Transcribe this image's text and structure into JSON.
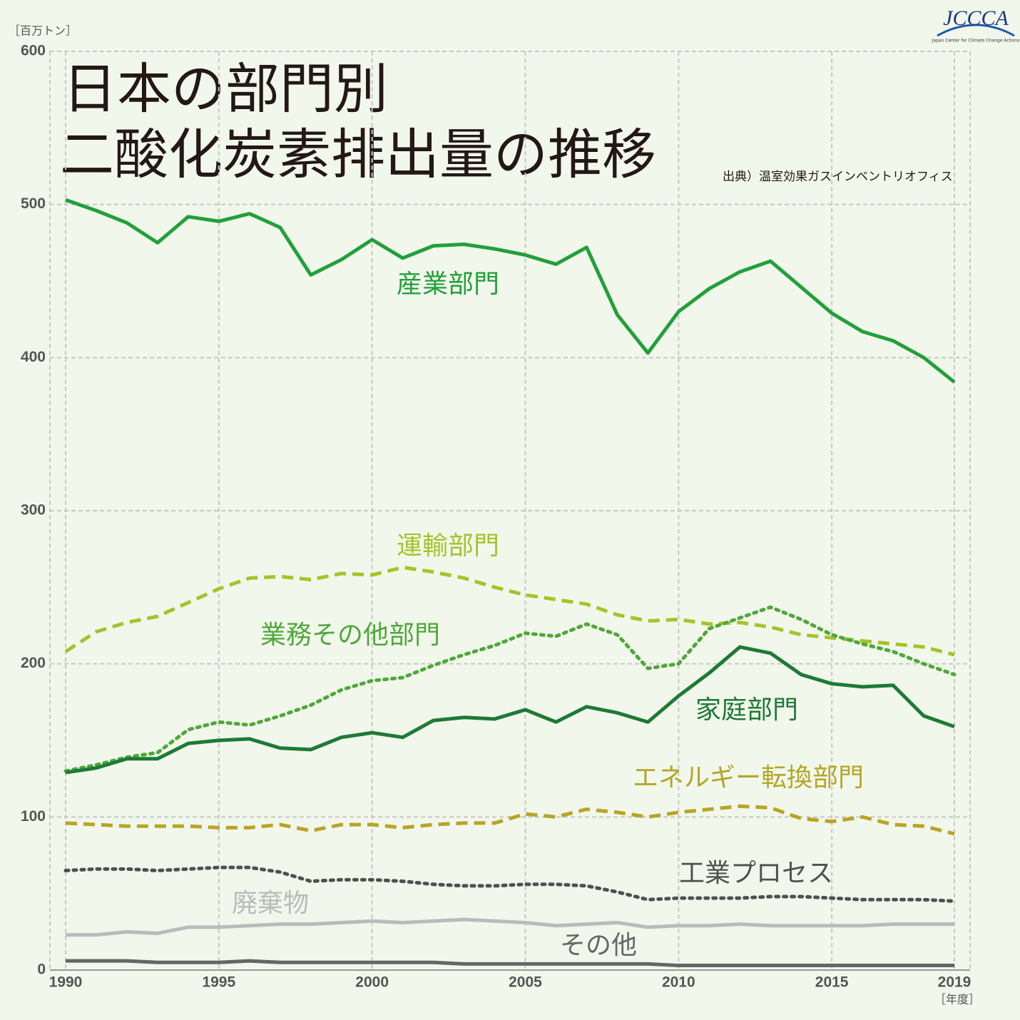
{
  "chart_data": {
    "type": "line",
    "title": [
      "日本の部門別",
      "二酸化炭素排出量の推移"
    ],
    "source": "出典）温室効果ガスインベントリオフィス",
    "y_label": "［百万トン］",
    "x_label": "［年度］",
    "logo": {
      "name": "JCCCA",
      "caption": "Japan Center for Climate Change Actions"
    },
    "x": [
      1990,
      1991,
      1992,
      1993,
      1994,
      1995,
      1996,
      1997,
      1998,
      1999,
      2000,
      2001,
      2002,
      2003,
      2004,
      2005,
      2006,
      2007,
      2008,
      2009,
      2010,
      2011,
      2012,
      2013,
      2014,
      2015,
      2016,
      2017,
      2018,
      2019
    ],
    "xlim": [
      1990,
      2019
    ],
    "xticks": [
      1990,
      1995,
      2000,
      2005,
      2010,
      2015,
      2019
    ],
    "ylim": [
      0,
      600
    ],
    "yticks": [
      0,
      100,
      200,
      300,
      400,
      500,
      600
    ],
    "grid": true,
    "series": [
      {
        "name": "産業部門",
        "color": "#22a03a",
        "dash": "solid",
        "values": [
          503,
          496,
          488,
          475,
          492,
          489,
          494,
          485,
          454,
          464,
          477,
          465,
          473,
          474,
          471,
          467,
          461,
          472,
          428,
          403,
          430,
          445,
          456,
          463,
          446,
          429,
          417,
          411,
          400,
          384
        ]
      },
      {
        "name": "運輸部門",
        "color": "#a8c22a",
        "dash": "dashed",
        "values": [
          208,
          221,
          227,
          231,
          240,
          249,
          256,
          257,
          255,
          259,
          258,
          263,
          260,
          256,
          250,
          245,
          242,
          239,
          232,
          228,
          229,
          226,
          227,
          224,
          219,
          217,
          215,
          213,
          211,
          206
        ]
      },
      {
        "name": "業務その他部門",
        "color": "#4fa83a",
        "dash": "dotted",
        "values": [
          130,
          134,
          139,
          142,
          157,
          162,
          160,
          166,
          173,
          183,
          189,
          191,
          199,
          206,
          212,
          220,
          218,
          226,
          219,
          197,
          200,
          223,
          230,
          237,
          229,
          219,
          213,
          208,
          200,
          193
        ]
      },
      {
        "name": "家庭部門",
        "color": "#1e7a35",
        "dash": "solid",
        "values": [
          129,
          132,
          138,
          138,
          148,
          150,
          151,
          145,
          144,
          152,
          155,
          152,
          163,
          165,
          164,
          170,
          162,
          172,
          168,
          162,
          179,
          194,
          211,
          207,
          193,
          187,
          185,
          186,
          166,
          159
        ]
      },
      {
        "name": "エネルギー転換部門",
        "color": "#b5a626",
        "dash": "dashed",
        "values": [
          96,
          95,
          94,
          94,
          94,
          93,
          93,
          95,
          91,
          95,
          95,
          93,
          95,
          96,
          96,
          102,
          100,
          105,
          103,
          100,
          103,
          105,
          107,
          106,
          99,
          97,
          100,
          95,
          94,
          89
        ]
      },
      {
        "name": "工業プロセス",
        "color": "#505050",
        "dash": "dotted",
        "values": [
          65,
          66,
          66,
          65,
          66,
          67,
          67,
          64,
          58,
          59,
          59,
          58,
          56,
          55,
          55,
          56,
          56,
          55,
          51,
          46,
          47,
          47,
          47,
          48,
          48,
          47,
          46,
          46,
          46,
          45
        ]
      },
      {
        "name": "廃棄物",
        "color": "#bbbbbb",
        "dash": "solid",
        "values": [
          23,
          23,
          25,
          24,
          28,
          28,
          29,
          30,
          30,
          31,
          32,
          31,
          32,
          33,
          32,
          31,
          29,
          30,
          31,
          28,
          29,
          29,
          30,
          29,
          29,
          29,
          29,
          30,
          30,
          30
        ]
      },
      {
        "name": "その他",
        "color": "#666666",
        "dash": "solid",
        "values": [
          6,
          6,
          6,
          5,
          5,
          5,
          6,
          5,
          5,
          5,
          5,
          5,
          5,
          4,
          4,
          4,
          4,
          4,
          4,
          4,
          3,
          3,
          3,
          3,
          3,
          3,
          3,
          3,
          3,
          3
        ]
      }
    ]
  }
}
